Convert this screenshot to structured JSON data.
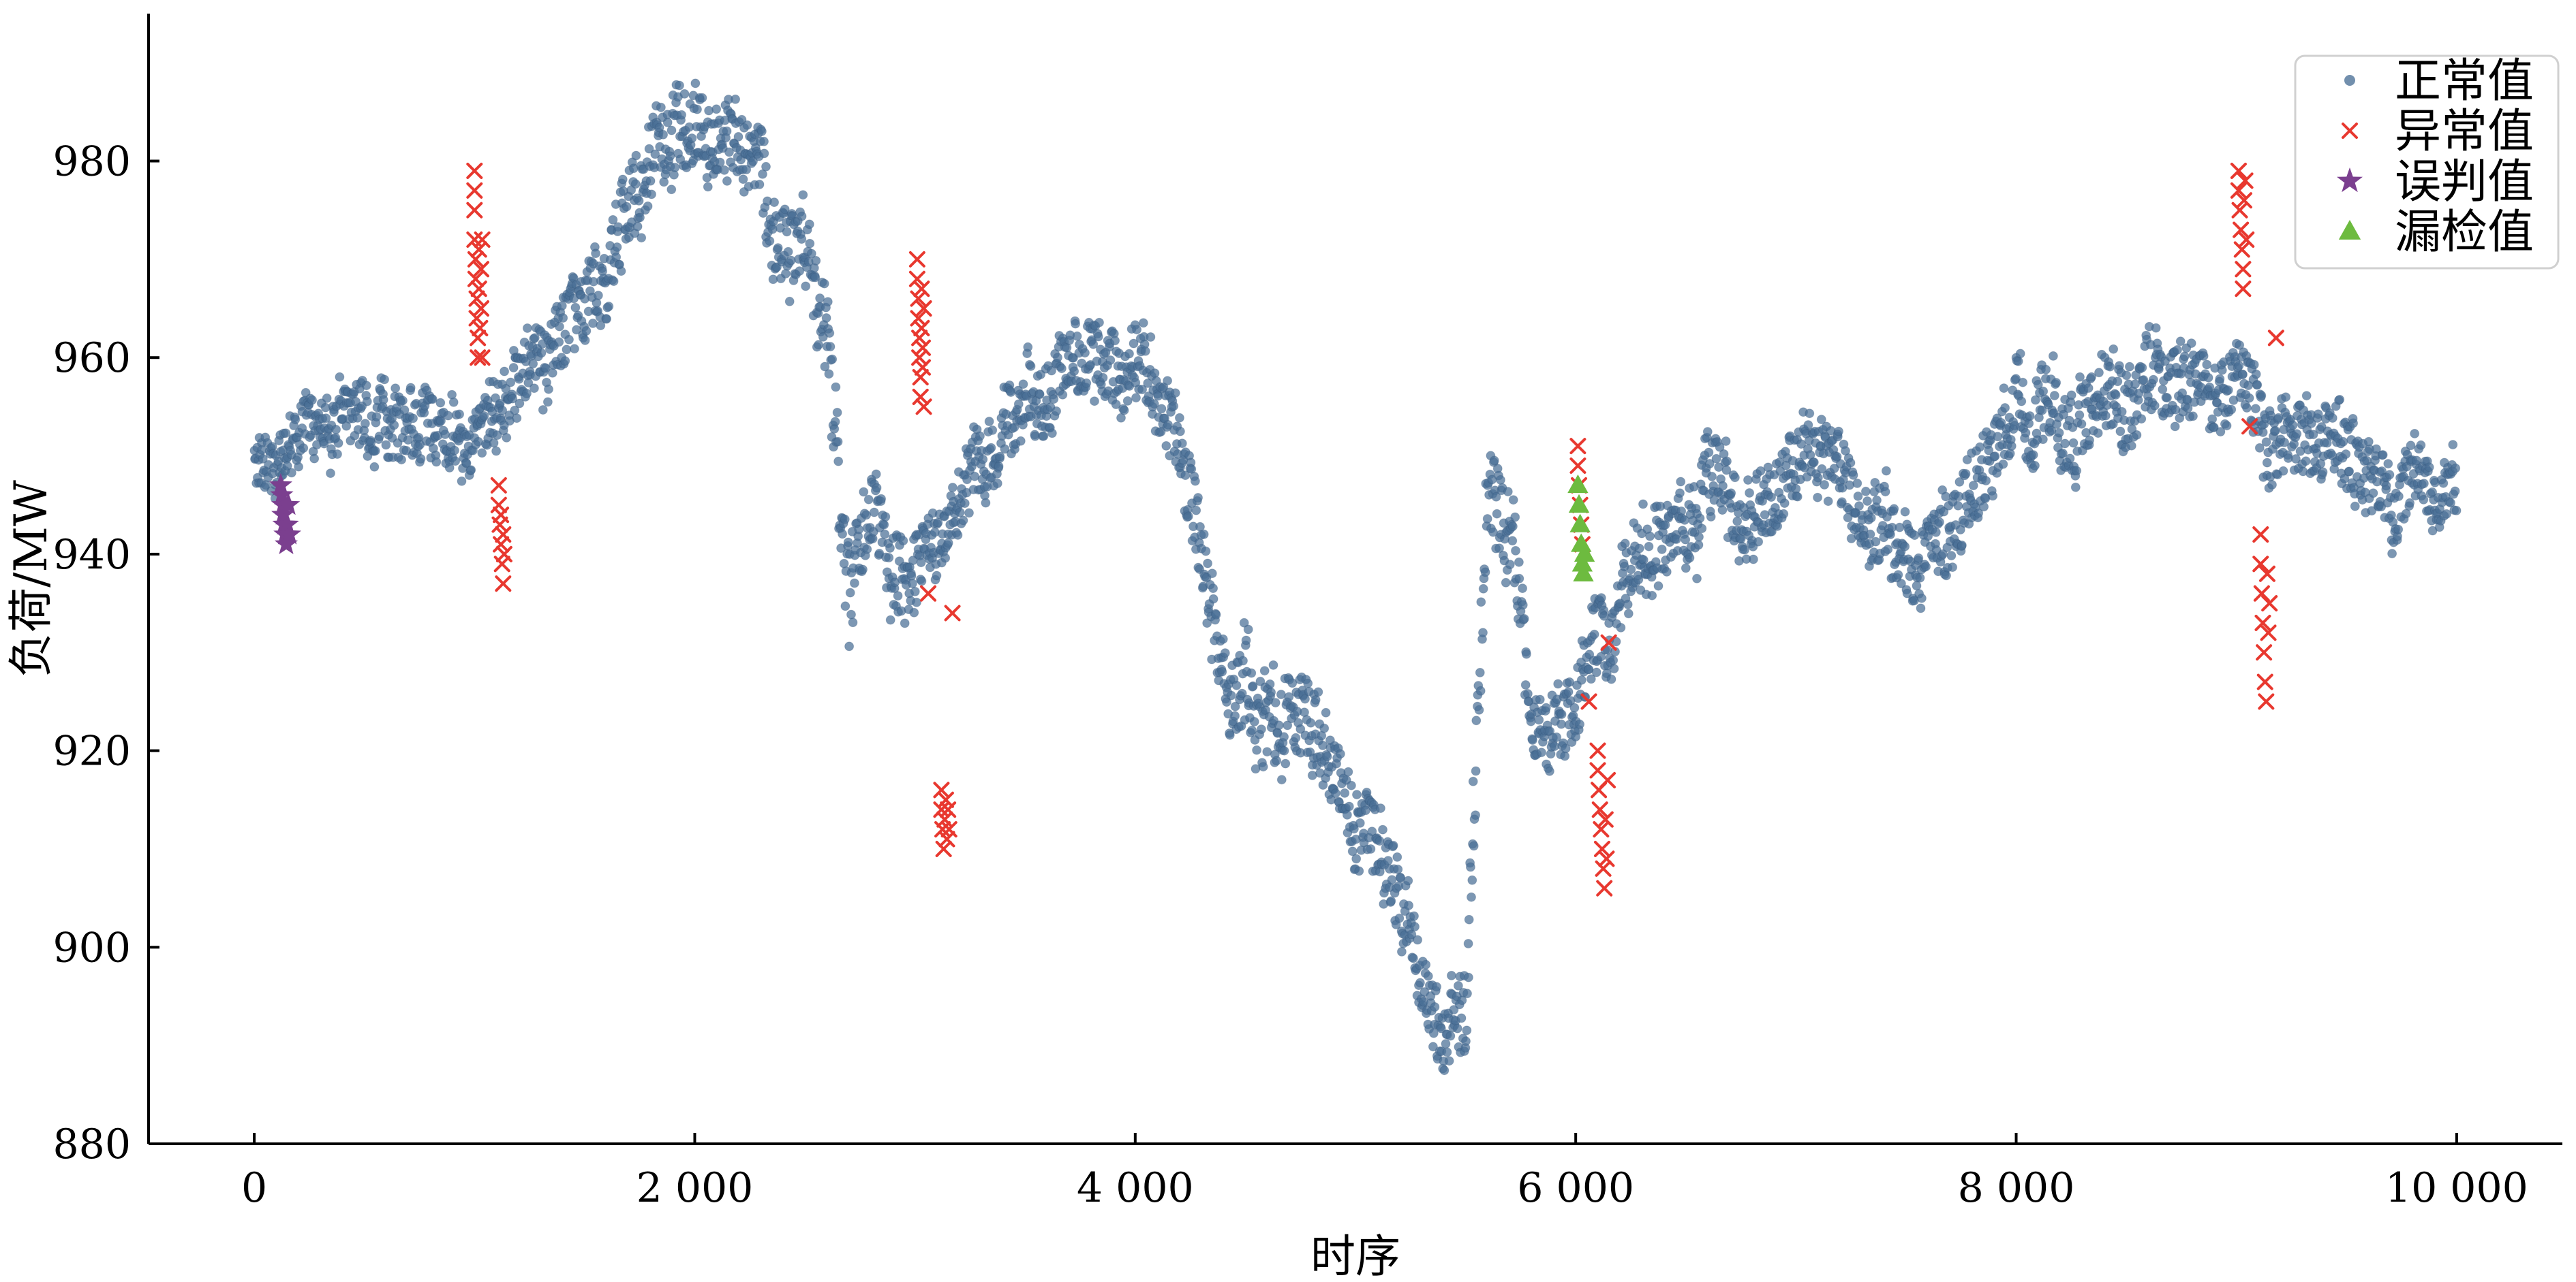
{
  "colors": {
    "normal": "#4a6f96",
    "anomaly": "#e8382f",
    "misjudged": "#7b3f8f",
    "missed": "#6dbb3f",
    "axis": "#000000"
  },
  "chart_data": {
    "type": "scatter",
    "title": "",
    "xlabel": "时序",
    "ylabel": "负荷/MW",
    "xlim": [
      -480,
      10480
    ],
    "ylim": [
      880,
      995
    ],
    "grid": false,
    "legend_position": "top-right",
    "x_ticks": [
      0,
      2000,
      4000,
      6000,
      8000,
      10000
    ],
    "x_tick_labels": [
      "0",
      "2 000",
      "4 000",
      "6 000",
      "8 000",
      "10 000"
    ],
    "y_ticks": [
      880,
      900,
      920,
      940,
      960,
      980
    ],
    "y_tick_labels": [
      "880",
      "900",
      "920",
      "940",
      "960",
      "980"
    ],
    "normal_trend": {
      "x": [
        0,
        200,
        500,
        800,
        1000,
        1200,
        1400,
        1600,
        1800,
        2000,
        2200,
        2400,
        2600,
        2700,
        2800,
        3000,
        3100,
        3300,
        3500,
        3700,
        4000,
        4200,
        4400,
        4600,
        4800,
        5000,
        5200,
        5400,
        5500,
        5600,
        5700,
        5800,
        6000,
        6200,
        6400,
        6600,
        6800,
        7000,
        7200,
        7400,
        7600,
        7800,
        8000,
        8200,
        8400,
        8600,
        8800,
        9000,
        9200,
        9400,
        9600,
        9800,
        10000
      ],
      "y": [
        948,
        952,
        958,
        955,
        952,
        961,
        965,
        969,
        985,
        983,
        980,
        974,
        965,
        935,
        944,
        938,
        937,
        944,
        953,
        957,
        955,
        947,
        926,
        926,
        920,
        913,
        902,
        893,
        888,
        940,
        935,
        920,
        920,
        933,
        943,
        946,
        944,
        947,
        947,
        943,
        940,
        946,
        957,
        955,
        953,
        957,
        955,
        955,
        952,
        951,
        948,
        947,
        950
      ],
      "spread": [
        6,
        6,
        7,
        7,
        6,
        7,
        7,
        8,
        10,
        8,
        8,
        9,
        9,
        10,
        8,
        8,
        7,
        7,
        7,
        7,
        8,
        8,
        9,
        10,
        8,
        8,
        8,
        7,
        8,
        9,
        9,
        7,
        8,
        9,
        8,
        8,
        8,
        8,
        8,
        8,
        8,
        8,
        9,
        8,
        8,
        9,
        8,
        7,
        8,
        7,
        8,
        7,
        6
      ]
    },
    "series": [
      {
        "name": "正常值",
        "marker": "circle",
        "color": "#4a6f96",
        "points": [
          [
            0,
            948
          ],
          [
            1000,
            952
          ],
          [
            2000,
            983
          ],
          [
            3000,
            938
          ],
          [
            4000,
            955
          ],
          [
            5000,
            913
          ],
          [
            5500,
            888
          ],
          [
            6000,
            920
          ],
          [
            7000,
            947
          ],
          [
            8000,
            957
          ],
          [
            9000,
            955
          ],
          [
            10000,
            950
          ]
        ]
      },
      {
        "name": "异常值",
        "marker": "x",
        "color": "#e8382f",
        "points": [
          [
            1000,
            979
          ],
          [
            1000,
            977
          ],
          [
            1000,
            975
          ],
          [
            1000,
            972
          ],
          [
            1005,
            970
          ],
          [
            1005,
            968
          ],
          [
            1010,
            966
          ],
          [
            1010,
            964
          ],
          [
            1015,
            962
          ],
          [
            1015,
            960
          ],
          [
            1020,
            971
          ],
          [
            1020,
            967
          ],
          [
            1025,
            963
          ],
          [
            1030,
            969
          ],
          [
            1030,
            965
          ],
          [
            1035,
            972
          ],
          [
            1035,
            960
          ],
          [
            1110,
            947
          ],
          [
            1110,
            945
          ],
          [
            1115,
            943
          ],
          [
            1120,
            941
          ],
          [
            1120,
            944
          ],
          [
            1125,
            939
          ],
          [
            1130,
            937
          ],
          [
            1130,
            942
          ],
          [
            1135,
            940
          ],
          [
            3010,
            970
          ],
          [
            3010,
            968
          ],
          [
            3015,
            966
          ],
          [
            3015,
            964
          ],
          [
            3020,
            962
          ],
          [
            3020,
            960
          ],
          [
            3025,
            958
          ],
          [
            3025,
            956
          ],
          [
            3030,
            967
          ],
          [
            3030,
            963
          ],
          [
            3035,
            959
          ],
          [
            3035,
            961
          ],
          [
            3040,
            955
          ],
          [
            3040,
            965
          ],
          [
            3060,
            936
          ],
          [
            3170,
            934
          ],
          [
            3120,
            916
          ],
          [
            3120,
            914
          ],
          [
            3125,
            912
          ],
          [
            3130,
            910
          ],
          [
            3135,
            913
          ],
          [
            3140,
            915
          ],
          [
            3145,
            911
          ],
          [
            3150,
            914
          ],
          [
            3155,
            912
          ],
          [
            6010,
            951
          ],
          [
            6010,
            949
          ],
          [
            6015,
            947
          ],
          [
            6020,
            945
          ],
          [
            6025,
            943
          ],
          [
            6030,
            941
          ],
          [
            6060,
            925
          ],
          [
            6150,
            931
          ],
          [
            6100,
            920
          ],
          [
            6100,
            918
          ],
          [
            6105,
            916
          ],
          [
            6110,
            914
          ],
          [
            6115,
            912
          ],
          [
            6120,
            910
          ],
          [
            6125,
            908
          ],
          [
            6130,
            906
          ],
          [
            6135,
            913
          ],
          [
            6140,
            909
          ],
          [
            6145,
            917
          ],
          [
            9010,
            979
          ],
          [
            9010,
            977
          ],
          [
            9015,
            975
          ],
          [
            9020,
            973
          ],
          [
            9025,
            971
          ],
          [
            9030,
            969
          ],
          [
            9030,
            967
          ],
          [
            9035,
            976
          ],
          [
            9040,
            978
          ],
          [
            9045,
            972
          ],
          [
            9060,
            953
          ],
          [
            9180,
            962
          ],
          [
            9110,
            942
          ],
          [
            9110,
            939
          ],
          [
            9115,
            936
          ],
          [
            9120,
            933
          ],
          [
            9125,
            930
          ],
          [
            9130,
            927
          ],
          [
            9135,
            925
          ],
          [
            9140,
            938
          ],
          [
            9145,
            932
          ],
          [
            9150,
            935
          ]
        ]
      },
      {
        "name": "误判值",
        "marker": "star",
        "color": "#7b3f8f",
        "points": [
          [
            120,
            947
          ],
          [
            125,
            946
          ],
          [
            130,
            945
          ],
          [
            130,
            944
          ],
          [
            135,
            943
          ],
          [
            140,
            942
          ],
          [
            145,
            941
          ],
          [
            150,
            943
          ],
          [
            155,
            945
          ],
          [
            160,
            942
          ]
        ]
      },
      {
        "name": "漏检值",
        "marker": "triangle",
        "color": "#6dbb3f",
        "points": [
          [
            6010,
            947
          ],
          [
            6015,
            945
          ],
          [
            6020,
            943
          ],
          [
            6025,
            941
          ],
          [
            6030,
            939
          ],
          [
            6035,
            938
          ],
          [
            6040,
            940
          ]
        ]
      }
    ],
    "legend": [
      "正常值",
      "异常值",
      "误判值",
      "漏检值"
    ]
  }
}
